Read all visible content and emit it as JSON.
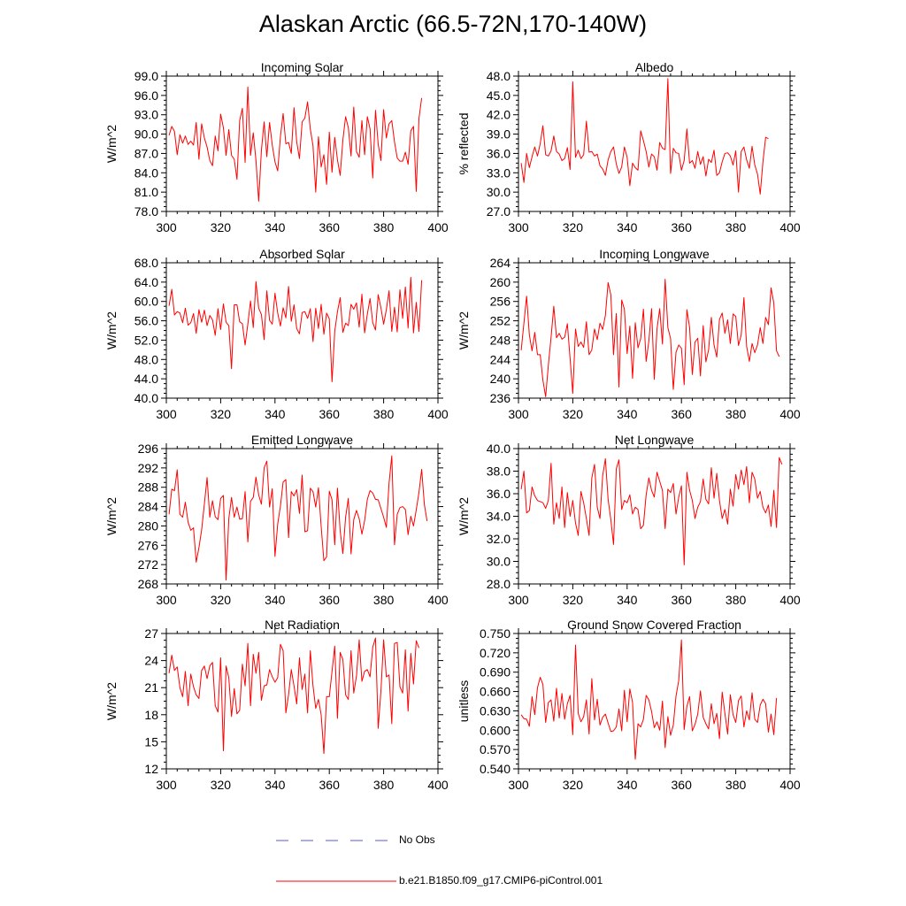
{
  "title": "Alaskan Arctic (66.5-72N,170-140W)",
  "chart_data": [
    {
      "type": "line",
      "title": "Incoming Solar",
      "ylabel": "W/m^2",
      "xlim": [
        300,
        400
      ],
      "ylim": [
        78.0,
        99.0
      ],
      "yticks": [
        "78.0",
        "81.0",
        "84.0",
        "87.0",
        "90.0",
        "93.0",
        "96.0",
        "99.0"
      ],
      "xticks": [
        "300",
        "320",
        "340",
        "360",
        "380",
        "400"
      ],
      "series": [
        {
          "name": "b.e21.B1850.f09_g17.CMIP6-piControl.001",
          "color": "#ff0000",
          "x_start": 301,
          "values": [
            89.8,
            91.2,
            90.4,
            86.8,
            89.9,
            88.6,
            89.7,
            88.4,
            88.9,
            88.3,
            91.8,
            86.1,
            91.6,
            89.4,
            88.0,
            85.9,
            85.1,
            89.7,
            87.4,
            93.1,
            91.0,
            86.7,
            90.7,
            86.7,
            86.1,
            83.0,
            92.1,
            94.0,
            85.6,
            97.3,
            86.7,
            90.2,
            85.9,
            79.6,
            87.5,
            91.9,
            86.5,
            91.8,
            88.3,
            85.7,
            84.3,
            89.6,
            93.2,
            88.5,
            88.7,
            87.0,
            94.1,
            88.8,
            86.2,
            91.9,
            92.5,
            95.0,
            90.8,
            88.2,
            81.0,
            89.6,
            84.9,
            86.8,
            82.2,
            90.3,
            84.1,
            89.5,
            86.0,
            83.6,
            89.1,
            92.7,
            91.0,
            86.6,
            94.2,
            87.3,
            86.4,
            92.1,
            86.8,
            92.7,
            90.8,
            83.2,
            93.7,
            88.4,
            85.9,
            93.8,
            89.4,
            91.6,
            92.1,
            88.8,
            86.3,
            85.8,
            85.8,
            87.2,
            85.3,
            90.5,
            91.2,
            81.1,
            92.4,
            95.6
          ]
        }
      ]
    },
    {
      "type": "line",
      "title": "Albedo",
      "ylabel": "% reflected",
      "xlim": [
        300,
        400
      ],
      "ylim": [
        27.0,
        48.0
      ],
      "yticks": [
        "27.0",
        "30.0",
        "33.0",
        "36.0",
        "39.0",
        "42.0",
        "45.0",
        "48.0"
      ],
      "xticks": [
        "300",
        "320",
        "340",
        "360",
        "380",
        "400"
      ],
      "series": [
        {
          "name": "b.e21.B1850.f09_g17.CMIP6-piControl.001",
          "color": "#ff0000",
          "x_start": 301,
          "values": [
            34.5,
            31.5,
            36.0,
            33.8,
            35.5,
            37.0,
            35.6,
            37.5,
            40.3,
            35.8,
            35.6,
            36.4,
            38.7,
            36.3,
            35.9,
            34.9,
            35.2,
            36.9,
            33.5,
            47.1,
            35.4,
            36.5,
            35.2,
            35.8,
            41.0,
            36.2,
            36.3,
            35.6,
            35.9,
            34.1,
            33.6,
            32.6,
            35.0,
            36.3,
            37.0,
            34.4,
            32.9,
            33.9,
            37.0,
            35.4,
            31.0,
            34.5,
            33.8,
            33.4,
            39.5,
            38.0,
            36.3,
            33.9,
            35.9,
            35.5,
            33.4,
            37.7,
            36.8,
            36.6,
            47.6,
            32.9,
            36.8,
            36.1,
            36.0,
            33.4,
            34.9,
            39.8,
            34.5,
            34.9,
            33.7,
            36.3,
            34.3,
            35.5,
            32.5,
            35.1,
            34.6,
            36.5,
            32.6,
            33.0,
            34.7,
            36.0,
            36.1,
            35.6,
            34.2,
            36.4,
            30.0,
            36.3,
            37.0,
            35.0,
            33.7,
            37.1,
            34.2,
            32.8,
            29.7,
            34.7,
            38.5,
            38.3
          ]
        }
      ]
    },
    {
      "type": "line",
      "title": "Absorbed Solar",
      "ylabel": "W/m^2",
      "xlim": [
        300,
        400
      ],
      "ylim": [
        40.0,
        68.0
      ],
      "yticks": [
        "40.0",
        "44.0",
        "48.0",
        "52.0",
        "56.0",
        "60.0",
        "64.0",
        "68.0"
      ],
      "xticks": [
        "300",
        "320",
        "340",
        "360",
        "380",
        "400"
      ],
      "series": [
        {
          "name": "b.e21.B1850.f09_g17.CMIP6-piControl.001",
          "color": "#ff0000",
          "x_start": 301,
          "values": [
            59.1,
            62.5,
            57.2,
            57.9,
            57.6,
            55.6,
            58.6,
            55.1,
            55.6,
            57.5,
            53.4,
            58.3,
            55.7,
            58.2,
            55.0,
            57.1,
            56.2,
            53.0,
            58.5,
            54.2,
            59.5,
            55.7,
            55.0,
            46.1,
            59.3,
            59.3,
            55.8,
            55.4,
            51.0,
            55.3,
            60.1,
            54.6,
            64.1,
            58.6,
            57.3,
            52.1,
            62.2,
            56.1,
            55.3,
            61.7,
            57.6,
            54.9,
            58.7,
            56.6,
            63.1,
            55.9,
            59.3,
            54.4,
            53.3,
            57.7,
            57.9,
            56.5,
            58.5,
            51.7,
            58.6,
            54.4,
            59.4,
            53.2,
            57.6,
            56.4,
            43.4,
            53.8,
            57.9,
            60.8,
            53.6,
            55.5,
            55.0,
            59.4,
            58.4,
            59.7,
            54.7,
            61.5,
            53.5,
            57.4,
            60.6,
            55.6,
            54.1,
            61.4,
            58.7,
            55.3,
            58.3,
            62.2,
            53.8,
            58.8,
            53.7,
            62.4,
            56.5,
            63.0,
            54.5,
            65.0,
            53.5,
            59.8,
            53.8,
            64.4
          ]
        }
      ]
    },
    {
      "type": "line",
      "title": "Incoming Longwave",
      "ylabel": "W/m^2",
      "xlim": [
        300,
        400
      ],
      "ylim": [
        236,
        264
      ],
      "yticks": [
        "236",
        "240",
        "244",
        "248",
        "252",
        "256",
        "260",
        "264"
      ],
      "xticks": [
        "300",
        "320",
        "340",
        "360",
        "380",
        "400"
      ],
      "series": [
        {
          "name": "b.e21.B1850.f09_g17.CMIP6-piControl.001",
          "color": "#ff0000",
          "x_start": 301,
          "values": [
            245.9,
            251.5,
            257.1,
            249.1,
            245.8,
            249.6,
            245.0,
            245.0,
            239.7,
            236.3,
            242.8,
            248.6,
            255.0,
            248.5,
            249.4,
            248.2,
            248.6,
            251.4,
            244.2,
            237.0,
            250.3,
            246.7,
            247.6,
            246.5,
            251.8,
            245.0,
            246.0,
            250.3,
            248.1,
            251.5,
            250.2,
            253.1,
            259.9,
            257.4,
            245.0,
            253.5,
            238.3,
            256.3,
            254.4,
            245.2,
            250.9,
            240.1,
            251.6,
            246.4,
            248.3,
            254.4,
            243.6,
            247.8,
            254.5,
            239.9,
            250.3,
            254.5,
            247.2,
            260.6,
            250.6,
            248.3,
            237.8,
            245.5,
            247.0,
            246.3,
            238.8,
            254.3,
            250.6,
            240.9,
            247.6,
            248.4,
            240.6,
            251.0,
            243.5,
            246.0,
            252.7,
            247.0,
            244.5,
            252.3,
            253.6,
            249.4,
            252.2,
            247.3,
            253.4,
            252.9,
            246.9,
            249.1,
            256.8,
            246.7,
            243.6,
            247.3,
            245.4,
            247.0,
            250.6,
            247.3,
            252.7,
            251.2,
            258.8,
            255.7,
            245.8,
            244.6
          ]
        }
      ]
    },
    {
      "type": "line",
      "title": "Emitted Longwave",
      "ylabel": "W/m^2",
      "xlim": [
        300,
        400
      ],
      "ylim": [
        268,
        296
      ],
      "yticks": [
        "268",
        "272",
        "276",
        "280",
        "284",
        "288",
        "292",
        "296"
      ],
      "xticks": [
        "300",
        "320",
        "340",
        "360",
        "380",
        "400"
      ],
      "series": [
        {
          "name": "b.e21.B1850.f09_g17.CMIP6-piControl.001",
          "color": "#ff0000",
          "x_start": 301,
          "values": [
            282.4,
            287.6,
            287.3,
            291.6,
            282.4,
            281.8,
            284.9,
            280.8,
            279.1,
            279.6,
            272.5,
            275.5,
            279.2,
            284.5,
            290.0,
            281.8,
            285.2,
            281.9,
            281.3,
            285.7,
            286.3,
            268.8,
            281.5,
            285.9,
            281.8,
            283.9,
            281.4,
            281.5,
            287.1,
            276.7,
            285.1,
            285.9,
            290.1,
            286.4,
            284.5,
            292.0,
            293.4,
            283.9,
            287.7,
            273.7,
            280.4,
            284.1,
            289.1,
            289.6,
            277.6,
            287.1,
            286.2,
            287.5,
            282.6,
            290.5,
            278.8,
            279.0,
            287.8,
            287.1,
            283.9,
            287.9,
            279.9,
            272.8,
            273.6,
            287.2,
            285.4,
            276.1,
            287.8,
            279.0,
            274.3,
            281.8,
            285.7,
            274.2,
            281.3,
            283.2,
            281.5,
            278.3,
            281.1,
            285.5,
            287.3,
            286.8,
            285.5,
            285.4,
            283.6,
            281.8,
            279.7,
            288.9,
            294.5,
            276.1,
            282.4,
            283.8,
            284.0,
            283.4,
            278.2,
            282.0,
            280.0,
            283.3,
            286.9,
            291.7,
            284.4,
            281.0
          ]
        }
      ]
    },
    {
      "type": "line",
      "title": "Net Longwave",
      "ylabel": "W/m^2",
      "xlim": [
        300,
        400
      ],
      "ylim": [
        28.0,
        40.0
      ],
      "yticks": [
        "28.0",
        "30.0",
        "32.0",
        "34.0",
        "36.0",
        "38.0",
        "40.0"
      ],
      "xticks": [
        "300",
        "320",
        "340",
        "360",
        "380",
        "400"
      ],
      "series": [
        {
          "name": "b.e21.B1850.f09_g17.CMIP6-piControl.001",
          "color": "#ff0000",
          "x_start": 301,
          "values": [
            36.4,
            38.0,
            34.3,
            34.5,
            36.6,
            35.8,
            35.4,
            35.3,
            35.2,
            34.7,
            35.4,
            38.7,
            33.3,
            35.2,
            33.8,
            36.6,
            33.0,
            36.1,
            34.0,
            35.4,
            33.4,
            32.3,
            36.2,
            35.2,
            33.8,
            32.3,
            37.4,
            38.6,
            34.8,
            33.8,
            37.6,
            39.1,
            35.5,
            33.7,
            31.5,
            38.2,
            39.0,
            34.6,
            35.4,
            35.2,
            35.9,
            34.2,
            34.8,
            34.6,
            32.9,
            33.2,
            35.9,
            37.4,
            36.3,
            35.7,
            37.9,
            37.1,
            36.3,
            32.9,
            36.4,
            36.1,
            36.9,
            34.2,
            35.7,
            36.7,
            29.7,
            37.9,
            36.3,
            35.4,
            33.8,
            34.8,
            35.3,
            37.3,
            35.5,
            35.1,
            38.3,
            35.6,
            37.8,
            35.4,
            33.8,
            34.6,
            33.3,
            36.4,
            34.9,
            37.7,
            36.4,
            38.1,
            36.8,
            38.4,
            35.2,
            37.9,
            37.3,
            35.6,
            36.2,
            34.8,
            34.3,
            35.0,
            33.1,
            36.3,
            33.0,
            39.2,
            38.6
          ]
        }
      ]
    },
    {
      "type": "line",
      "title": "Net Radiation",
      "ylabel": "W/m^2",
      "xlim": [
        300,
        400
      ],
      "ylim": [
        12,
        27
      ],
      "yticks": [
        "12",
        "15",
        "18",
        "21",
        "24",
        "27"
      ],
      "xticks": [
        "300",
        "320",
        "340",
        "360",
        "380",
        "400"
      ],
      "series": [
        {
          "name": "b.e21.B1850.f09_g17.CMIP6-piControl.001",
          "color": "#ff0000",
          "x_start": 301,
          "values": [
            22.6,
            24.6,
            22.9,
            23.3,
            21.0,
            20.0,
            22.8,
            19.0,
            22.5,
            21.1,
            20.2,
            19.8,
            22.9,
            23.4,
            22.0,
            23.4,
            23.8,
            19.0,
            18.3,
            24.3,
            14.0,
            23.4,
            22.1,
            17.8,
            20.9,
            18.1,
            18.5,
            23.6,
            21.2,
            25.9,
            19.0,
            24.7,
            22.6,
            24.9,
            19.6,
            21.2,
            21.3,
            23.0,
            22.2,
            21.6,
            22.1,
            25.8,
            25.1,
            18.2,
            20.2,
            23.0,
            21.2,
            19.2,
            24.3,
            20.8,
            22.5,
            18.2,
            25.1,
            21.2,
            18.7,
            19.7,
            18.0,
            13.7,
            20.0,
            20.0,
            22.8,
            25.6,
            17.6,
            24.9,
            24.1,
            20.2,
            19.7,
            25.1,
            20.4,
            22.3,
            26.3,
            21.7,
            22.8,
            23.0,
            22.2,
            25.5,
            26.5,
            16.5,
            20.6,
            26.3,
            22.2,
            22.4,
            17.0,
            25.9,
            26.0,
            21.1,
            20.4,
            25.2,
            18.4,
            24.8,
            21.4,
            26.2,
            25.4
          ]
        }
      ]
    },
    {
      "type": "line",
      "title": "Ground Snow Covered Fraction",
      "ylabel": "unitless",
      "xlim": [
        300,
        400
      ],
      "ylim": [
        0.54,
        0.75
      ],
      "yticks": [
        "0.540",
        "0.570",
        "0.600",
        "0.630",
        "0.660",
        "0.690",
        "0.720",
        "0.750"
      ],
      "xticks": [
        "300",
        "320",
        "340",
        "360",
        "380",
        "400"
      ],
      "series": [
        {
          "name": "b.e21.B1850.f09_g17.CMIP6-piControl.001",
          "color": "#ff0000",
          "x_start": 301,
          "values": [
            0.624,
            0.618,
            0.617,
            0.606,
            0.652,
            0.624,
            0.666,
            0.682,
            0.671,
            0.612,
            0.643,
            0.647,
            0.614,
            0.665,
            0.619,
            0.657,
            0.617,
            0.641,
            0.654,
            0.593,
            0.732,
            0.626,
            0.613,
            0.621,
            0.647,
            0.594,
            0.68,
            0.616,
            0.648,
            0.608,
            0.62,
            0.625,
            0.611,
            0.598,
            0.599,
            0.605,
            0.633,
            0.599,
            0.662,
            0.613,
            0.664,
            0.643,
            0.555,
            0.61,
            0.605,
            0.617,
            0.654,
            0.647,
            0.629,
            0.604,
            0.613,
            0.6,
            0.645,
            0.573,
            0.621,
            0.592,
            0.608,
            0.653,
            0.677,
            0.74,
            0.601,
            0.637,
            0.652,
            0.599,
            0.609,
            0.625,
            0.661,
            0.62,
            0.61,
            0.602,
            0.641,
            0.61,
            0.626,
            0.587,
            0.659,
            0.626,
            0.594,
            0.655,
            0.624,
            0.612,
            0.646,
            0.653,
            0.605,
            0.63,
            0.616,
            0.658,
            0.617,
            0.612,
            0.639,
            0.648,
            0.641,
            0.597,
            0.625,
            0.593,
            0.65
          ]
        }
      ]
    }
  ],
  "legend": {
    "items": [
      {
        "label": "No Obs",
        "color": "#5a5acd",
        "dashed": true
      },
      {
        "label": "b.e21.B1850.f09_g17.CMIP6-piControl.001",
        "color": "#ff0000",
        "dashed": false
      }
    ]
  }
}
